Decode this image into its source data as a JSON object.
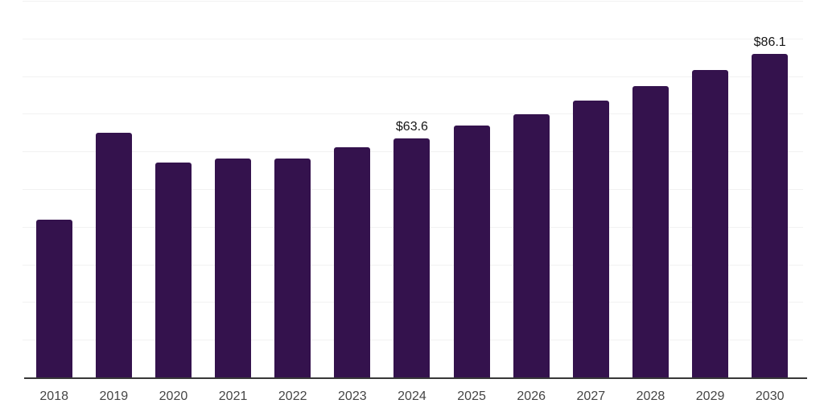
{
  "chart_data": {
    "type": "bar",
    "title": "",
    "xlabel": "",
    "ylabel": "",
    "categories": [
      "2018",
      "2019",
      "2020",
      "2021",
      "2022",
      "2023",
      "2024",
      "2025",
      "2026",
      "2027",
      "2028",
      "2029",
      "2030"
    ],
    "values": [
      42.0,
      65.2,
      57.3,
      58.3,
      58.4,
      61.3,
      63.6,
      67.0,
      70.0,
      73.8,
      77.5,
      81.8,
      86.1
    ],
    "data_labels": [
      null,
      null,
      null,
      null,
      null,
      null,
      "$63.6",
      null,
      null,
      null,
      null,
      null,
      "$86.1"
    ],
    "ylim": [
      0,
      100
    ],
    "gridline_interval": 10,
    "grid": true,
    "legend": false,
    "colors": {
      "bar": "#34124D",
      "gridline": "#F2F2F2",
      "axis_line": "#383838",
      "tick_label": "#454545",
      "data_label": "#161616",
      "background": "#FFFFFF"
    }
  }
}
